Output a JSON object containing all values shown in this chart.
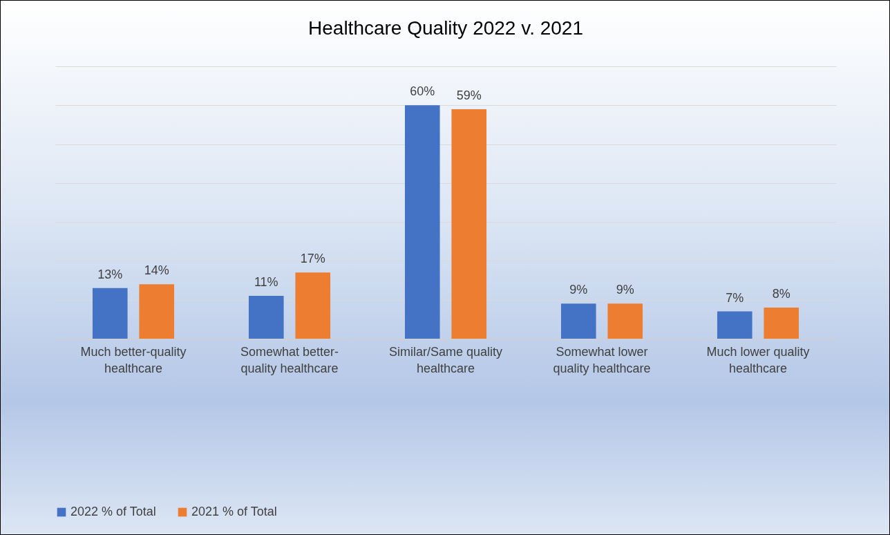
{
  "chart_data": {
    "type": "bar",
    "title": "Healthcare Quality 2022 v. 2021",
    "categories": [
      "Much better-quality healthcare",
      "Somewhat better-quality healthcare",
      "Similar/Same quality healthcare",
      "Somewhat lower quality healthcare",
      "Much lower quality healthcare"
    ],
    "series": [
      {
        "name": "2022 % of Total",
        "color": "#4472c4",
        "values": [
          13,
          11,
          60,
          9,
          7
        ],
        "value_labels": [
          "13%",
          "11%",
          "60%",
          "9%",
          "7%"
        ]
      },
      {
        "name": "2021 % of Total",
        "color": "#ed7d31",
        "values": [
          14,
          17,
          59,
          9,
          8
        ],
        "value_labels": [
          "14%",
          "17%",
          "59%",
          "9%",
          "8%"
        ]
      }
    ],
    "ylim": [
      0,
      70
    ],
    "yticks": [
      {
        "value": 0,
        "label": null
      },
      {
        "value": 10,
        "label": null
      },
      {
        "value": 20,
        "label": null
      },
      {
        "value": 30,
        "label": null
      },
      {
        "value": 40,
        "label": null
      },
      {
        "value": 50,
        "label": null
      },
      {
        "value": 60,
        "label": null
      },
      {
        "value": 70,
        "label": null
      }
    ],
    "tick_labels": "x",
    "grid": "y",
    "legend": "bottom"
  }
}
